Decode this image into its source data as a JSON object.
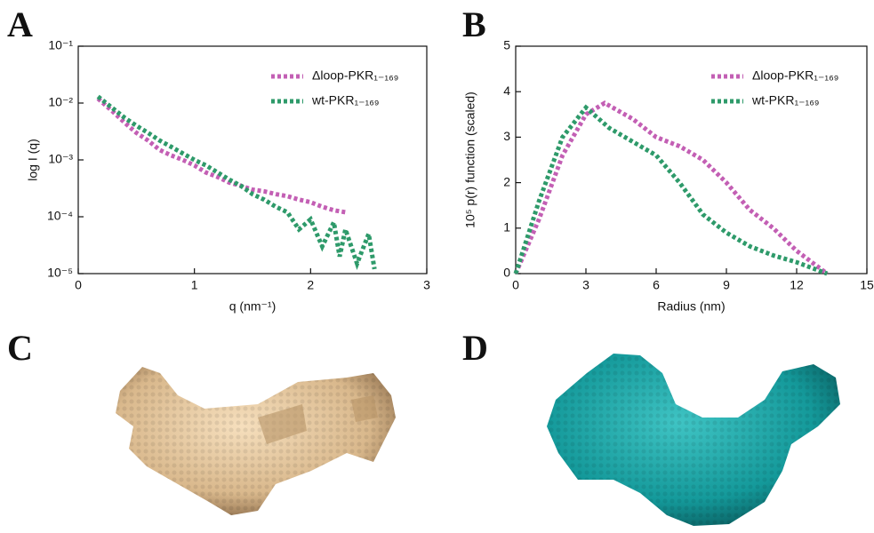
{
  "chart_data": [
    {
      "type": "line",
      "panel_label": "A",
      "x_label": "q (nm⁻¹)",
      "y_label": "log I (q)",
      "log_y": true,
      "legend": "upper-right",
      "xlim": [
        0,
        3
      ],
      "xticks": [
        0,
        1,
        2,
        3
      ],
      "ylim": [
        1e-05,
        0.1
      ],
      "yticks": [
        {
          "value": 1e-05,
          "label": "10⁻⁵"
        },
        {
          "value": 0.0001,
          "label": "10⁻⁴"
        },
        {
          "value": 0.001,
          "label": "10⁻³"
        },
        {
          "value": 0.01,
          "label": "10⁻²"
        },
        {
          "value": 0.1,
          "label": "10⁻¹"
        }
      ],
      "series": [
        {
          "name": "Δloop-PKR₁₋₁₆₉",
          "color": "#c35fb4",
          "x": [
            0.17,
            0.3,
            0.4,
            0.5,
            0.6,
            0.7,
            0.8,
            0.9,
            1.0,
            1.1,
            1.2,
            1.3,
            1.4,
            1.5,
            1.6,
            1.7,
            1.8,
            1.9,
            2.0,
            2.1,
            2.2,
            2.3
          ],
          "values": [
            0.012,
            0.007,
            0.0045,
            0.003,
            0.0022,
            0.0015,
            0.0012,
            0.001,
            0.0008,
            0.0006,
            0.0005,
            0.0004,
            0.00035,
            0.0003,
            0.00028,
            0.00025,
            0.00023,
            0.0002,
            0.00018,
            0.00015,
            0.00013,
            0.00012
          ]
        },
        {
          "name": "wt-PKR₁₋₁₆₉",
          "color": "#2e9a6a",
          "x": [
            0.17,
            0.3,
            0.4,
            0.5,
            0.6,
            0.7,
            0.8,
            0.9,
            1.0,
            1.1,
            1.2,
            1.3,
            1.4,
            1.5,
            1.6,
            1.7,
            1.8,
            1.9,
            2.0,
            2.1,
            2.2,
            2.25,
            2.3,
            2.4,
            2.5,
            2.55
          ],
          "values": [
            0.013,
            0.008,
            0.0055,
            0.004,
            0.003,
            0.0022,
            0.0017,
            0.0013,
            0.001,
            0.0008,
            0.0006,
            0.00045,
            0.00035,
            0.00025,
            0.0002,
            0.00015,
            0.00012,
            6e-05,
            9e-05,
            3e-05,
            8e-05,
            2e-05,
            6e-05,
            1.5e-05,
            5e-05,
            1.2e-05
          ]
        }
      ]
    },
    {
      "type": "line",
      "panel_label": "B",
      "x_label": "Radius (nm)",
      "y_label": "10⁵ p(r) function (scaled)",
      "log_y": false,
      "legend": "upper-right",
      "xlim": [
        0,
        15
      ],
      "xticks": [
        0,
        3,
        6,
        9,
        12,
        15
      ],
      "ylim": [
        0,
        5
      ],
      "yticks": [
        0,
        1,
        2,
        3,
        4,
        5
      ],
      "series": [
        {
          "name": "Δloop-PKR₁₋₁₆₉",
          "color": "#c35fb4",
          "x": [
            0,
            1,
            2,
            3,
            3.8,
            5,
            6,
            7,
            8,
            9,
            10,
            11,
            12,
            13.3
          ],
          "values": [
            0,
            1.2,
            2.6,
            3.5,
            3.75,
            3.4,
            3.0,
            2.8,
            2.5,
            2.0,
            1.4,
            1.0,
            0.5,
            0
          ]
        },
        {
          "name": "wt-PKR₁₋₁₆₉",
          "color": "#2e9a6a",
          "x": [
            0,
            1,
            2,
            3,
            4,
            5,
            6,
            7,
            8,
            9,
            10,
            11,
            12,
            13.3
          ],
          "values": [
            0,
            1.6,
            3.0,
            3.65,
            3.2,
            2.9,
            2.6,
            2.0,
            1.3,
            0.9,
            0.6,
            0.4,
            0.25,
            0
          ]
        }
      ]
    }
  ],
  "figures": [
    {
      "label": "C"
    },
    {
      "label": "D"
    }
  ]
}
